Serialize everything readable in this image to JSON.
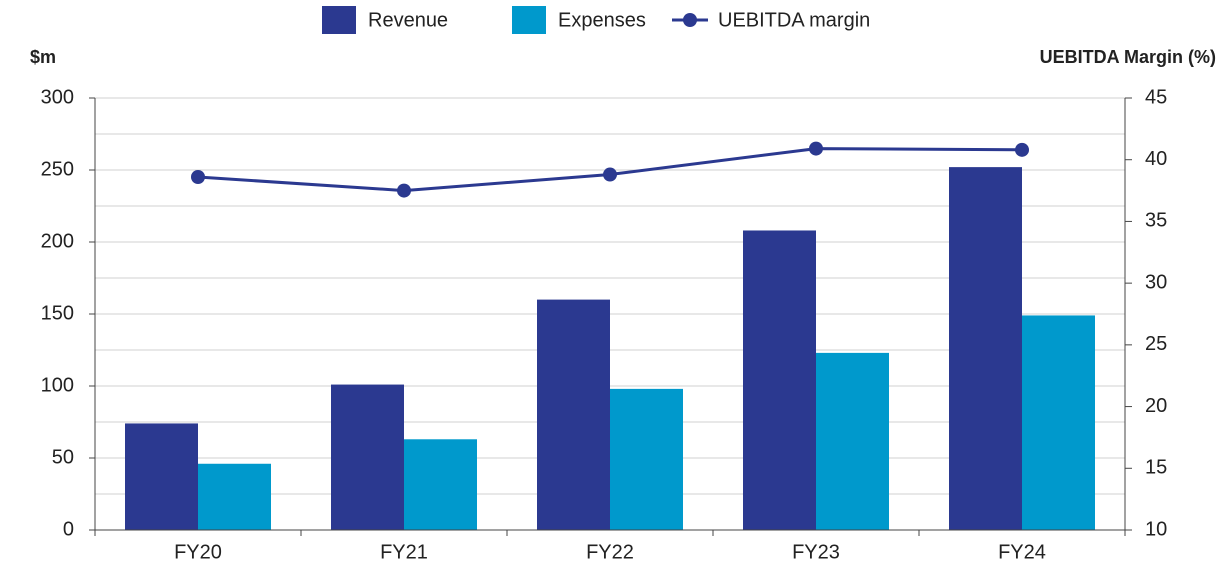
{
  "chart_data": {
    "type": "bar",
    "categories": [
      "FY20",
      "FY21",
      "FY22",
      "FY23",
      "FY24"
    ],
    "series": [
      {
        "name": "Revenue",
        "color": "#2b3990",
        "values": [
          74,
          101,
          160,
          208,
          252
        ]
      },
      {
        "name": "Expenses",
        "color": "#0099cc",
        "values": [
          46,
          63,
          98,
          123,
          149
        ]
      },
      {
        "name": "UEBITDA margin",
        "color": "#2b3990",
        "type": "line",
        "axis": "y2",
        "values": [
          38.6,
          37.5,
          38.8,
          40.9,
          40.8
        ]
      }
    ],
    "ylabel": "$m",
    "y2label": "UEBITDA Margin (%)",
    "ylim": [
      0,
      300
    ],
    "yticks": [
      0,
      50,
      100,
      150,
      200,
      250,
      300
    ],
    "minor_yticks": [
      25,
      75,
      125,
      175,
      225,
      275
    ],
    "y2lim": [
      10,
      45
    ],
    "y2ticks": [
      10,
      15,
      20,
      25,
      30,
      35,
      40,
      45
    ],
    "grid": true,
    "legend": "top"
  }
}
